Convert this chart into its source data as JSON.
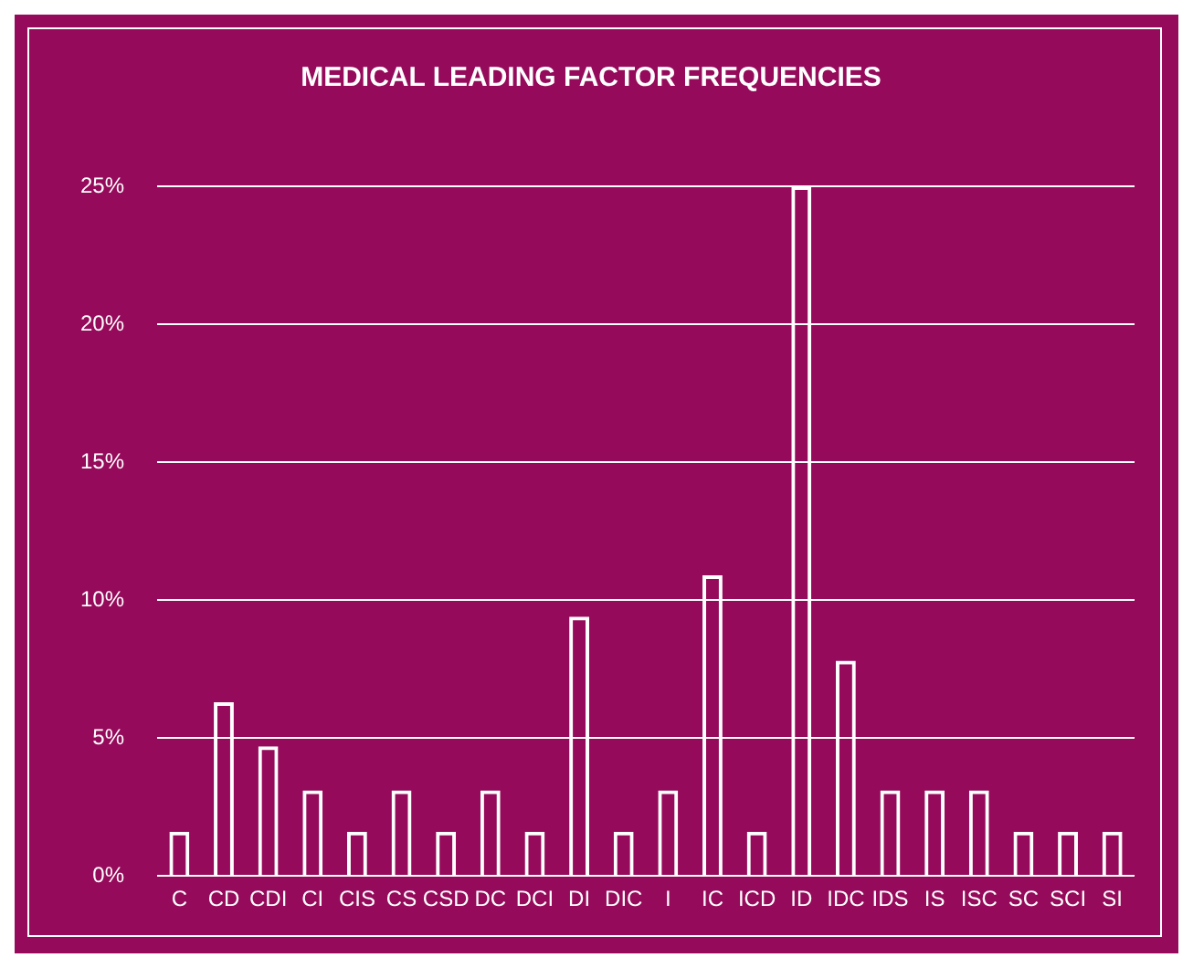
{
  "chart_data": {
    "type": "bar",
    "title": "MEDICAL LEADING FACTOR FREQUENCIES",
    "categories": [
      "C",
      "CD",
      "CDI",
      "CI",
      "CIS",
      "CS",
      "CSD",
      "DC",
      "DCI",
      "DI",
      "DIC",
      "I",
      "IC",
      "ICD",
      "ID",
      "IDC",
      "IDS",
      "IS",
      "ISC",
      "SC",
      "SCI",
      "SI"
    ],
    "values": [
      1.6,
      6.3,
      4.7,
      3.1,
      1.6,
      3.1,
      1.6,
      3.1,
      1.6,
      9.4,
      1.6,
      3.1,
      10.9,
      1.6,
      25,
      7.8,
      3.1,
      3.1,
      3.1,
      1.6,
      1.6,
      1.6
    ],
    "color": "#ffffff",
    "ylim": [
      0,
      25
    ],
    "yticks": [
      {
        "value": 0,
        "label": "0%"
      },
      {
        "value": 5,
        "label": "5%"
      },
      {
        "value": 10,
        "label": "10%"
      },
      {
        "value": 15,
        "label": "15%"
      },
      {
        "value": 20,
        "label": "20%"
      },
      {
        "value": 25,
        "label": "25%"
      }
    ],
    "grid": "y"
  }
}
